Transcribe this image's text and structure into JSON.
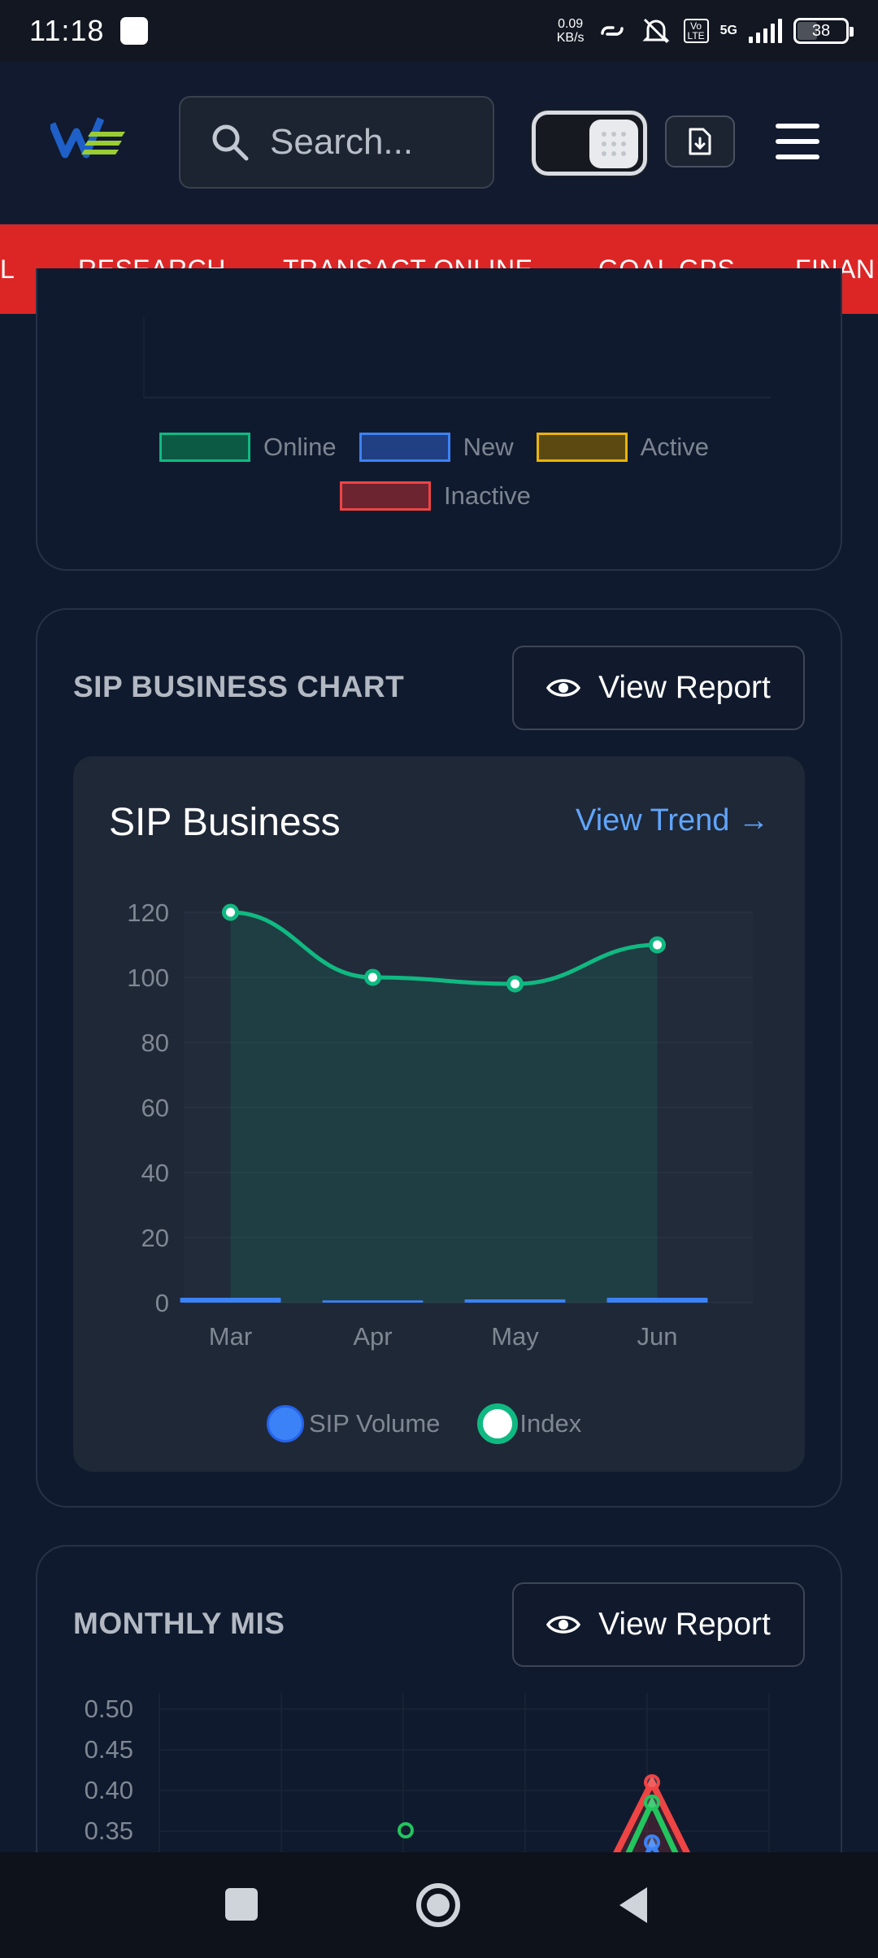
{
  "status": {
    "time": "11:18",
    "speed_value": "0.09",
    "speed_unit": "KB/s",
    "network": "5G",
    "battery": "38"
  },
  "header": {
    "search_placeholder": "Search..."
  },
  "nav": {
    "items": [
      "L",
      "RESEARCH",
      "TRANSACT ONLINE",
      "GOAL GPS",
      "FINAN"
    ]
  },
  "status_legend": [
    {
      "label": "Online",
      "color": "#10b981"
    },
    {
      "label": "New",
      "color": "#3b82f6"
    },
    {
      "label": "Active",
      "color": "#eab308"
    },
    {
      "label": "Inactive",
      "color": "#ef4444"
    }
  ],
  "sip_card": {
    "title": "SIP BUSINESS CHART",
    "view_report": "View Report",
    "inner_title": "SIP Business",
    "view_trend": "View Trend →"
  },
  "chart_data": [
    {
      "type": "line",
      "title": "SIP Business",
      "categories": [
        "Mar",
        "Apr",
        "May",
        "Jun"
      ],
      "series": [
        {
          "name": "SIP Volume",
          "type": "bar",
          "color": "#3b82f6",
          "values": [
            1,
            0,
            0.5,
            1
          ]
        },
        {
          "name": "Index",
          "type": "line",
          "color": "#10b981",
          "values": [
            120,
            100,
            98,
            110
          ]
        }
      ],
      "ylim": [
        0,
        120
      ],
      "yticks": [
        0,
        20,
        40,
        60,
        80,
        100,
        120
      ],
      "legend": "bottom",
      "grid": true
    },
    {
      "type": "line",
      "title": "MONTHLY MIS",
      "yticks_visible": [
        "0.50",
        "0.45",
        "0.40",
        "0.35"
      ],
      "partial": true
    }
  ],
  "mis_card": {
    "title": "MONTHLY MIS",
    "view_report": "View Report"
  }
}
